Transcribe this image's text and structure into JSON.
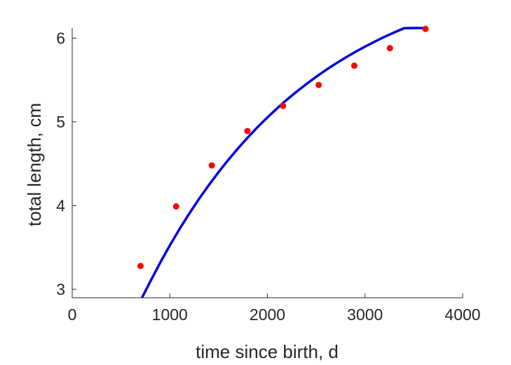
{
  "chart_data": {
    "type": "scatter",
    "title": "",
    "xlabel": "time since birth, d",
    "ylabel": "total length, cm",
    "xlim": [
      0,
      4000
    ],
    "ylim": [
      2.9,
      6.12
    ],
    "xticks": [
      0,
      1000,
      2000,
      3000,
      4000
    ],
    "yticks": [
      3,
      4,
      5,
      6
    ],
    "grid": false,
    "legend": "none",
    "colors": {
      "points": "#ff0000",
      "curve": "#0000e0",
      "axis": "#262626"
    },
    "series": [
      {
        "type": "scatter",
        "x": [
          700,
          1065,
          1430,
          1795,
          2160,
          2525,
          2890,
          3255,
          3620
        ],
        "y": [
          3.28,
          3.99,
          4.48,
          4.89,
          5.19,
          5.44,
          5.67,
          5.88,
          6.11
        ]
      },
      {
        "type": "line",
        "x": [
          715,
          800,
          900,
          1000,
          1100,
          1200,
          1300,
          1400,
          1500,
          1600,
          1700,
          1800,
          1900,
          2000,
          2100,
          2200,
          2300,
          2400,
          2500,
          2600,
          2700,
          2800,
          2900,
          3000,
          3100,
          3200,
          3300,
          3400,
          3500,
          3600
        ],
        "y": [
          2.9,
          3.094,
          3.315,
          3.524,
          3.721,
          3.906,
          4.081,
          4.245,
          4.401,
          4.547,
          4.685,
          4.815,
          4.938,
          5.053,
          5.162,
          5.265,
          5.361,
          5.452,
          5.538,
          5.619,
          5.695,
          5.767,
          5.835,
          5.898,
          5.958,
          6.015,
          6.068,
          6.118,
          6.12,
          6.12
        ]
      }
    ]
  }
}
